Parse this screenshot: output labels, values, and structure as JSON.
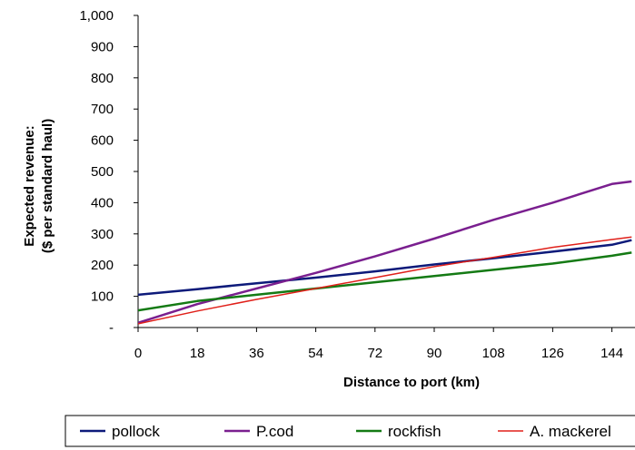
{
  "chart_data": {
    "type": "line",
    "title": "",
    "xlabel": "Distance to port (km)",
    "ylabel_line1": "Expected revenue:",
    "ylabel_line2": "($ per standard haul)",
    "x_ticks": [
      "0",
      "18",
      "36",
      "54",
      "72",
      "90",
      "108",
      "126",
      "144"
    ],
    "y_ticks": [
      "-",
      "100",
      "200",
      "300",
      "400",
      "500",
      "600",
      "700",
      "800",
      "900",
      "1,000"
    ],
    "ylim": [
      0,
      1000
    ],
    "xlim": [
      0,
      150
    ],
    "grid": false,
    "legend_position": "bottom",
    "x": [
      0,
      18,
      36,
      54,
      72,
      90,
      108,
      126,
      144,
      150
    ],
    "series": [
      {
        "name": "pollock",
        "color": "#0d1a7a",
        "values": [
          105,
          123,
          142,
          160,
          180,
          202,
          222,
          243,
          265,
          280
        ]
      },
      {
        "name": "P.cod",
        "color": "#7a1f8f",
        "values": [
          15,
          75,
          125,
          175,
          228,
          285,
          345,
          400,
          460,
          468
        ]
      },
      {
        "name": "rockfish",
        "color": "#147a14",
        "values": [
          55,
          85,
          105,
          125,
          145,
          165,
          185,
          205,
          230,
          240
        ]
      },
      {
        "name": "A. mackerel",
        "color": "#e0201a",
        "values": [
          12,
          53,
          90,
          125,
          160,
          195,
          225,
          257,
          282,
          290
        ]
      }
    ]
  }
}
